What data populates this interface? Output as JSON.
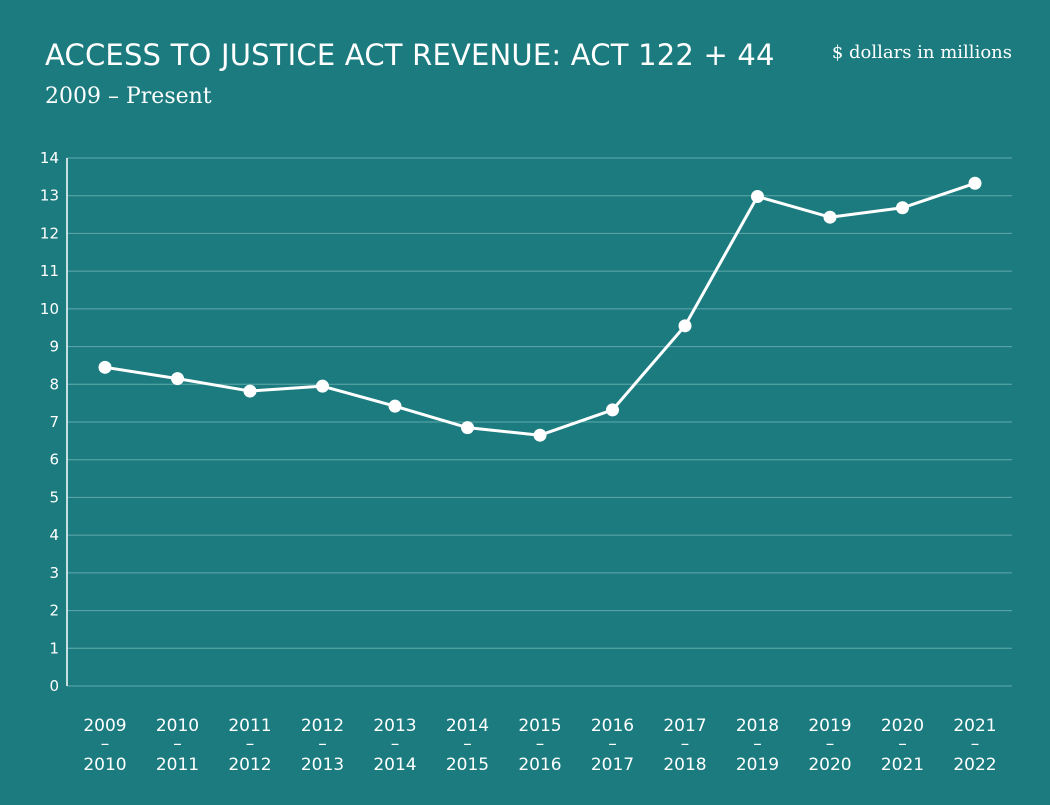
{
  "header": {
    "title": "ACCESS TO JUSTICE ACT REVENUE: ACT 122 + 44",
    "subtitle": "2009 – Present",
    "units": "$ dollars in millions"
  },
  "colors": {
    "background": "#1b7b7f",
    "line": "#ffffff",
    "grid": "#5fa9ab"
  },
  "chart_data": {
    "type": "line",
    "title": "ACCESS TO JUSTICE ACT REVENUE: ACT 122 + 44",
    "subtitle": "2009 – Present",
    "ylabel": "$ dollars in millions",
    "xlabel": "",
    "categories": [
      [
        "2009",
        "–",
        "2010"
      ],
      [
        "2010",
        "–",
        "2011"
      ],
      [
        "2011",
        "–",
        "2012"
      ],
      [
        "2012",
        "–",
        "2013"
      ],
      [
        "2013",
        "–",
        "2014"
      ],
      [
        "2014",
        "–",
        "2015"
      ],
      [
        "2015",
        "–",
        "2016"
      ],
      [
        "2016",
        "–",
        "2017"
      ],
      [
        "2017",
        "–",
        "2018"
      ],
      [
        "2018",
        "–",
        "2019"
      ],
      [
        "2019",
        "–",
        "2020"
      ],
      [
        "2020",
        "–",
        "2021"
      ],
      [
        "2021",
        "–",
        "2022"
      ]
    ],
    "series": [
      {
        "values": [
          8.45,
          8.15,
          7.82,
          7.95,
          7.42,
          6.85,
          6.65,
          7.32,
          9.55,
          12.98,
          12.43,
          12.68,
          13.33
        ]
      }
    ],
    "ylim": [
      0,
      14
    ],
    "yticks": [
      "0",
      "1",
      "2",
      "3",
      "4",
      "5",
      "6",
      "7",
      "8",
      "9",
      "10",
      "11",
      "12",
      "13",
      "14"
    ],
    "grid": true,
    "legend": "none"
  }
}
